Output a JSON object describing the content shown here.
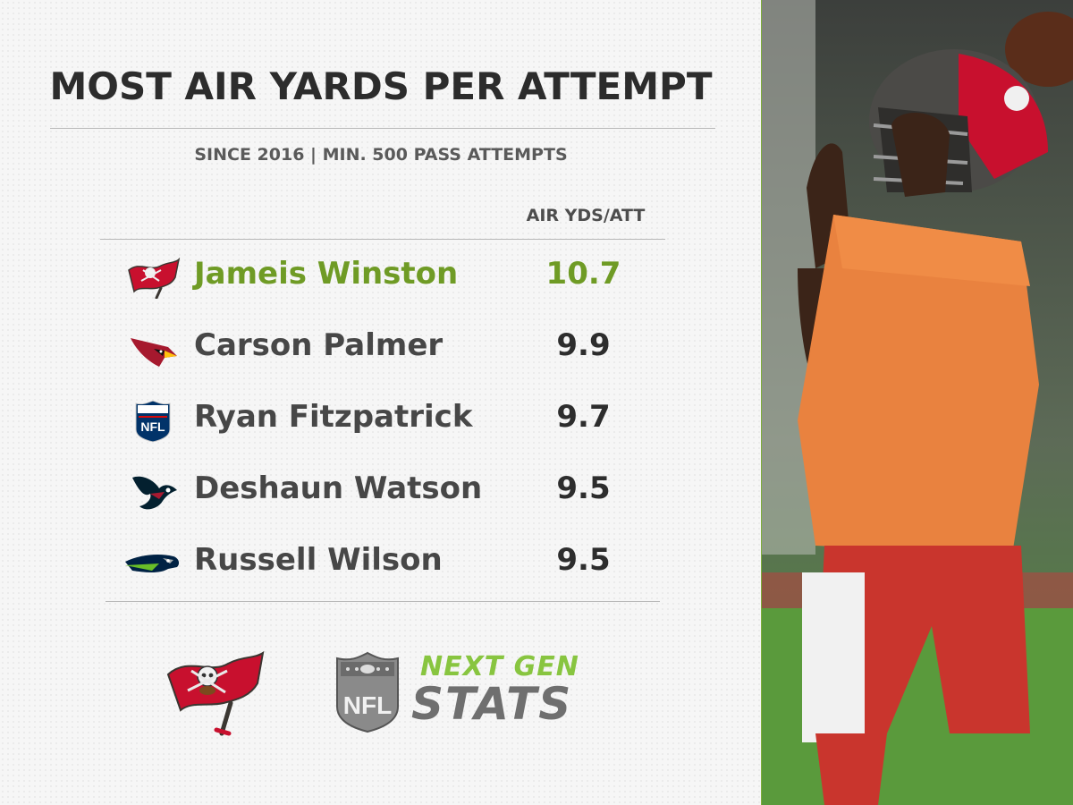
{
  "header": {
    "title": "MOST AIR YARDS PER ATTEMPT",
    "subtitle": "SINCE 2016 | MIN. 500 PASS ATTEMPTS"
  },
  "table": {
    "column_header": "AIR YDS/ATT",
    "rows": [
      {
        "name": "Jameis Winston",
        "value": "10.7",
        "team_logo": "buccaneers-flag-icon",
        "highlight": true
      },
      {
        "name": "Carson Palmer",
        "value": "9.9",
        "team_logo": "cardinals-head-icon",
        "highlight": false
      },
      {
        "name": "Ryan Fitzpatrick",
        "value": "9.7",
        "team_logo": "nfl-shield-icon",
        "highlight": false
      },
      {
        "name": "Deshaun Watson",
        "value": "9.5",
        "team_logo": "texans-bull-icon",
        "highlight": false
      },
      {
        "name": "Russell Wilson",
        "value": "9.5",
        "team_logo": "seahawks-head-icon",
        "highlight": false
      }
    ]
  },
  "footer": {
    "brand_top": "NEXT GEN",
    "brand_bottom": "STATS",
    "nfl_shield_text": "NFL"
  },
  "colors": {
    "highlight": "#6f9b25",
    "accent_green": "#88c540",
    "bucs_red": "#c8102e",
    "bucs_pewter": "#34302b"
  },
  "chart_data": {
    "type": "table",
    "title": "MOST AIR YARDS PER ATTEMPT",
    "subtitle": "SINCE 2016 | MIN. 500 PASS ATTEMPTS",
    "columns": [
      "AIR YDS/ATT"
    ],
    "categories": [
      "Jameis Winston",
      "Carson Palmer",
      "Ryan Fitzpatrick",
      "Deshaun Watson",
      "Russell Wilson"
    ],
    "values": [
      10.7,
      9.9,
      9.7,
      9.5,
      9.5
    ]
  }
}
